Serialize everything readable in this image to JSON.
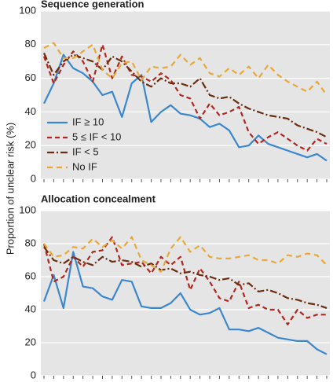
{
  "chart_data": [
    {
      "type": "line",
      "title": "Sequence generation",
      "ylabel": "Proportion of unclear risk (%)",
      "categories": [
        null,
        null,
        null,
        null,
        null,
        null,
        null,
        null,
        null,
        null,
        null,
        null,
        null,
        null,
        null,
        null,
        null,
        null,
        null,
        null,
        null,
        null,
        null,
        null,
        null,
        null,
        null,
        null,
        null,
        null
      ],
      "ylim": [
        0,
        100
      ],
      "yticks": [
        0,
        20,
        40,
        60,
        80,
        100
      ],
      "grid": true,
      "legend": "lower left",
      "series": [
        {
          "name": "IF ≥ 10",
          "color": "#3a87cf",
          "values": [
            45,
            57,
            74,
            66,
            63,
            58,
            50,
            52,
            37,
            57,
            62,
            34,
            40,
            44,
            39,
            38,
            36,
            31,
            33,
            29,
            19,
            20,
            26,
            21,
            19,
            17,
            15,
            13,
            15,
            11
          ]
        },
        {
          "name": "5 ≤ IF < 10",
          "color": "#b3261e",
          "values": [
            73,
            57,
            68,
            76,
            70,
            58,
            80,
            60,
            73,
            62,
            61,
            58,
            63,
            59,
            50,
            48,
            36,
            45,
            38,
            40,
            43,
            28,
            21,
            25,
            28,
            24,
            20,
            17,
            24,
            21
          ]
        },
        {
          "name": "IF < 5",
          "color": "#6b2d0f",
          "values": [
            75,
            62,
            70,
            74,
            72,
            70,
            65,
            73,
            70,
            64,
            58,
            55,
            60,
            57,
            57,
            55,
            60,
            50,
            48,
            49,
            45,
            42,
            40,
            38,
            37,
            36,
            32,
            30,
            28,
            25
          ]
        },
        {
          "name": "No IF",
          "color": "#e8a838",
          "values": [
            78,
            81,
            72,
            72,
            76,
            80,
            65,
            60,
            69,
            70,
            59,
            67,
            66,
            67,
            74,
            68,
            72,
            63,
            61,
            66,
            62,
            67,
            60,
            68,
            62,
            58,
            55,
            52,
            58,
            50
          ]
        }
      ]
    },
    {
      "type": "line",
      "title": "Allocation concealment",
      "categories": [
        null,
        null,
        null,
        null,
        null,
        null,
        null,
        null,
        null,
        null,
        null,
        null,
        null,
        null,
        null,
        null,
        null,
        null,
        null,
        null,
        null,
        null,
        null,
        null,
        null,
        null,
        null,
        null,
        null,
        null
      ],
      "ylim": [
        0,
        100
      ],
      "yticks": [
        0,
        20,
        40,
        60,
        80,
        100
      ],
      "grid": true,
      "series": [
        {
          "color": "#3a87cf",
          "values": [
            45,
            61,
            41,
            75,
            54,
            53,
            48,
            46,
            58,
            57,
            42,
            41,
            41,
            44,
            50,
            40,
            37,
            38,
            41,
            28,
            28,
            27,
            29,
            26,
            23,
            22,
            21,
            21,
            16,
            13
          ]
        },
        {
          "color": "#b3261e",
          "values": [
            80,
            57,
            60,
            72,
            66,
            75,
            76,
            84,
            67,
            68,
            69,
            62,
            72,
            67,
            72,
            52,
            65,
            57,
            47,
            45,
            57,
            41,
            43,
            40,
            40,
            31,
            40,
            35,
            37,
            37
          ]
        },
        {
          "color": "#6b2d0f",
          "values": [
            78,
            70,
            68,
            72,
            69,
            67,
            72,
            69,
            70,
            69,
            66,
            68,
            64,
            65,
            62,
            63,
            61,
            60,
            58,
            59,
            55,
            56,
            51,
            52,
            50,
            47,
            46,
            44,
            43,
            41
          ]
        },
        {
          "color": "#e8a838",
          "values": [
            80,
            72,
            73,
            78,
            77,
            83,
            78,
            82,
            77,
            84,
            70,
            67,
            63,
            77,
            84,
            75,
            79,
            72,
            71,
            71,
            72,
            73,
            70,
            70,
            68,
            73,
            72,
            74,
            73,
            67
          ]
        }
      ]
    }
  ]
}
